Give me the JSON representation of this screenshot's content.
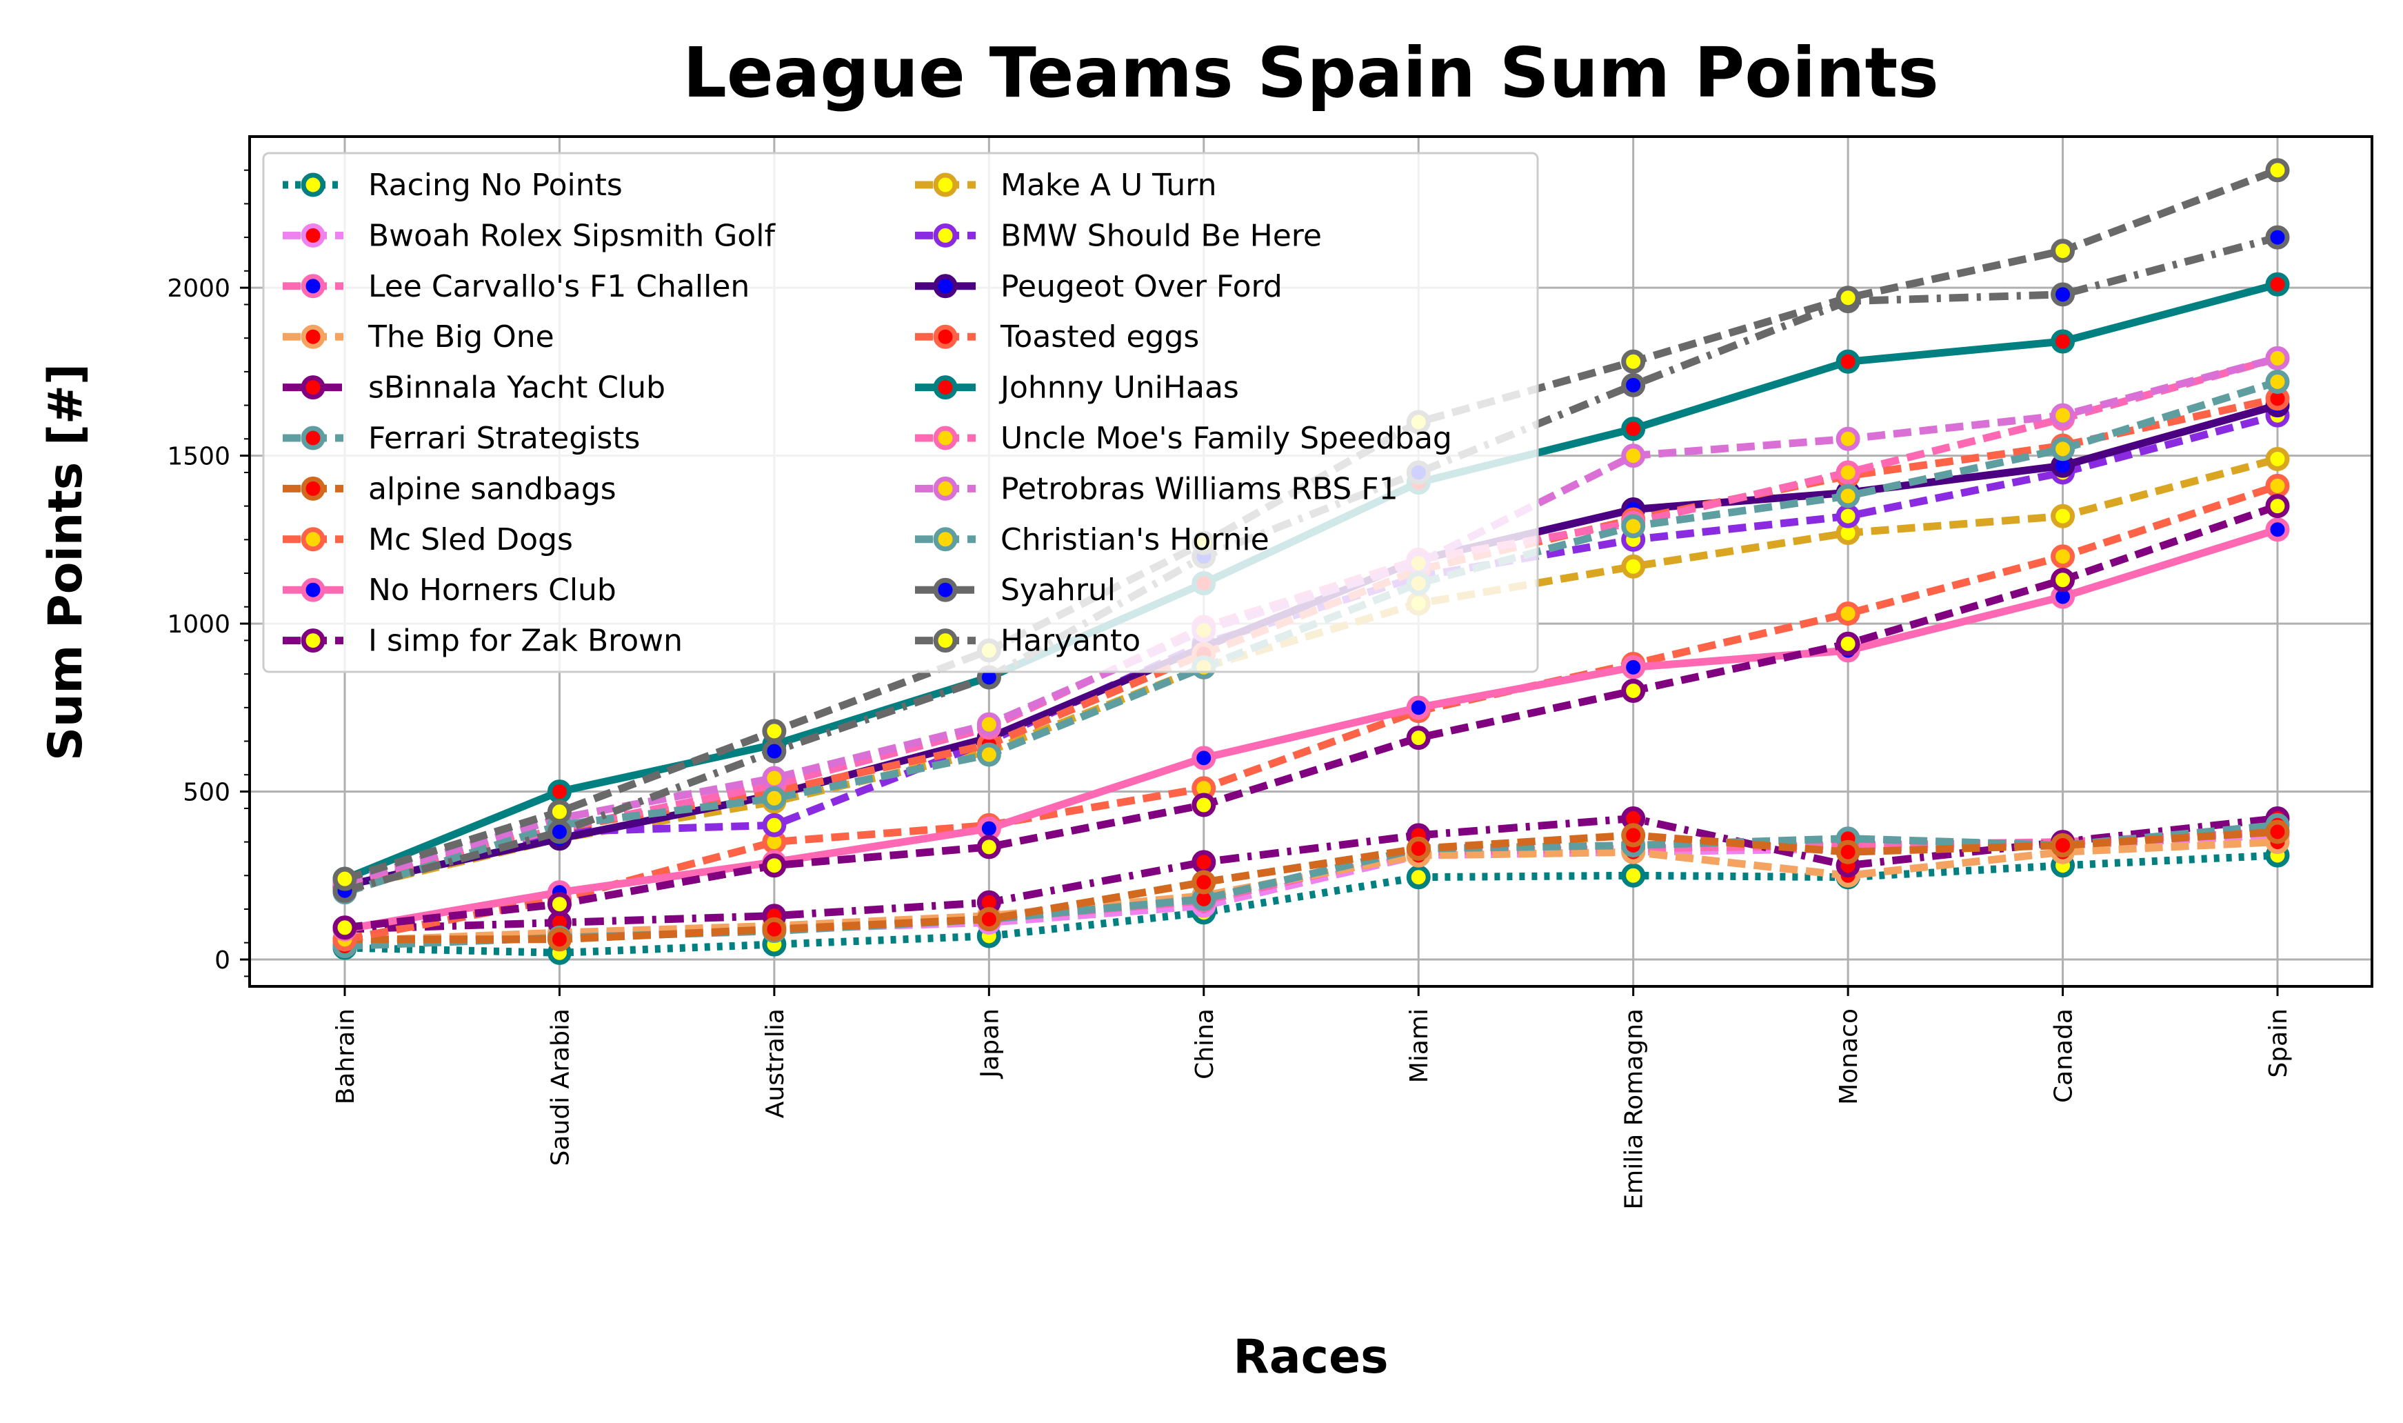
{
  "chart_data": {
    "type": "line",
    "title": "League Teams Spain Sum Points",
    "xlabel": "Races",
    "ylabel": "Sum Points [#]",
    "ylim": [
      -80,
      2450
    ],
    "y_ticks": [
      0,
      500,
      1000,
      1500,
      2000
    ],
    "y_tick_labels": [
      "0",
      "500",
      "1000",
      "1500",
      "2000"
    ],
    "grid": true,
    "legend_position": "top-left",
    "legend_columns": 2,
    "categories": [
      "Bahrain",
      "Saudi Arabia",
      "Australia",
      "Japan",
      "China",
      "Miami",
      "Emilia Romagna",
      "Monaco",
      "Canada",
      "Spain"
    ],
    "series": [
      {
        "name": "Racing No Points",
        "color": "#008080",
        "dash": "dotted",
        "marker_face": "#ffff00",
        "values": [
          35,
          20,
          45,
          70,
          140,
          245,
          250,
          245,
          280,
          310
        ]
      },
      {
        "name": "Bwoah Rolex Sipsmith Golf",
        "color": "#ee82ee",
        "dash": "dashed",
        "marker_face": "#ff0000",
        "values": [
          45,
          70,
          90,
          110,
          160,
          310,
          320,
          330,
          340,
          370
        ]
      },
      {
        "name": "Lee Carvallo's F1 Challen",
        "color": "#ff69b4",
        "dash": "dashed",
        "marker_face": "#0000ff",
        "values": [
          50,
          75,
          95,
          120,
          175,
          320,
          330,
          340,
          350,
          380
        ]
      },
      {
        "name": "The Big One",
        "color": "#f4a460",
        "dash": "dashed",
        "marker_face": "#ff0000",
        "values": [
          55,
          80,
          100,
          130,
          190,
          310,
          320,
          250,
          320,
          350
        ]
      },
      {
        "name": "sBinnala Yacht Club",
        "color": "#800080",
        "dash": "dashdot",
        "marker_face": "#ff0000",
        "values": [
          90,
          110,
          130,
          170,
          290,
          370,
          420,
          280,
          350,
          420
        ]
      },
      {
        "name": "Ferrari Strategists",
        "color": "#5f9ea0",
        "dash": "dashed",
        "marker_face": "#ff0000",
        "values": [
          40,
          65,
          85,
          120,
          180,
          330,
          340,
          360,
          340,
          400
        ]
      },
      {
        "name": "alpine sandbags",
        "color": "#d2691e",
        "dash": "dashed",
        "marker_face": "#ff0000",
        "values": [
          60,
          60,
          90,
          120,
          230,
          330,
          370,
          320,
          340,
          380
        ]
      },
      {
        "name": "Mc Sled Dogs",
        "color": "#ff6347",
        "dash": "dashed",
        "marker_face": "#ffd700",
        "values": [
          60,
          180,
          350,
          400,
          510,
          740,
          880,
          1030,
          1200,
          1410
        ]
      },
      {
        "name": "No Horners Club",
        "color": "#ff69b4",
        "dash": "solid",
        "marker_face": "#0000ff",
        "values": [
          90,
          200,
          290,
          390,
          600,
          750,
          870,
          920,
          1080,
          1280
        ]
      },
      {
        "name": "I simp for Zak Brown",
        "color": "#800080",
        "dash": "dashed",
        "marker_face": "#ffff00",
        "values": [
          95,
          165,
          280,
          335,
          460,
          660,
          800,
          940,
          1130,
          1350
        ]
      },
      {
        "name": "Make A U Turn",
        "color": "#daa520",
        "dash": "dashed",
        "marker_face": "#ffff00",
        "values": [
          210,
          360,
          470,
          620,
          870,
          1060,
          1170,
          1270,
          1320,
          1490
        ]
      },
      {
        "name": "BMW Should Be Here",
        "color": "#8a2be2",
        "dash": "dashed",
        "marker_face": "#ffff00",
        "values": [
          220,
          380,
          400,
          650,
          940,
          1140,
          1250,
          1320,
          1450,
          1620
        ]
      },
      {
        "name": "Peugeot Over Ford",
        "color": "#4b0082",
        "dash": "solid",
        "marker_face": "#0000ff",
        "values": [
          220,
          360,
          490,
          660,
          930,
          1190,
          1340,
          1390,
          1470,
          1650
        ]
      },
      {
        "name": "Toasted eggs",
        "color": "#ff6347",
        "dash": "dashed",
        "marker_face": "#ff0000",
        "values": [
          230,
          390,
          500,
          640,
          910,
          1160,
          1310,
          1440,
          1530,
          1670
        ]
      },
      {
        "name": "Johnny UniHaas",
        "color": "#008080",
        "dash": "solid",
        "marker_face": "#ff0000",
        "values": [
          240,
          500,
          640,
          840,
          1120,
          1420,
          1580,
          1780,
          1840,
          2010
        ]
      },
      {
        "name": "Uncle Moe's Family Speedbag",
        "color": "#ff69b4",
        "dash": "dashed",
        "marker_face": "#ffd700",
        "values": [
          225,
          390,
          520,
          690,
          990,
          1190,
          1300,
          1450,
          1610,
          1790
        ]
      },
      {
        "name": "Petrobras Williams RBS F1",
        "color": "#da70d6",
        "dash": "dashed",
        "marker_face": "#ffd700",
        "values": [
          230,
          420,
          540,
          700,
          980,
          1180,
          1500,
          1550,
          1620,
          1790
        ]
      },
      {
        "name": "Christian's Hornie",
        "color": "#5f9ea0",
        "dash": "dashed",
        "marker_face": "#ffd700",
        "values": [
          200,
          400,
          480,
          610,
          870,
          1120,
          1290,
          1380,
          1520,
          1720
        ]
      },
      {
        "name": "Syahrul",
        "color": "#696969",
        "dash": "dashdot",
        "marker_face": "#0000ff",
        "values": [
          205,
          380,
          620,
          840,
          1200,
          1450,
          1710,
          1960,
          1980,
          2150
        ]
      },
      {
        "name": "Haryanto",
        "color": "#696969",
        "dash": "dashed",
        "marker_face": "#ffff00",
        "values": [
          240,
          440,
          680,
          920,
          1240,
          1600,
          1780,
          1970,
          2110,
          2350
        ]
      }
    ]
  }
}
